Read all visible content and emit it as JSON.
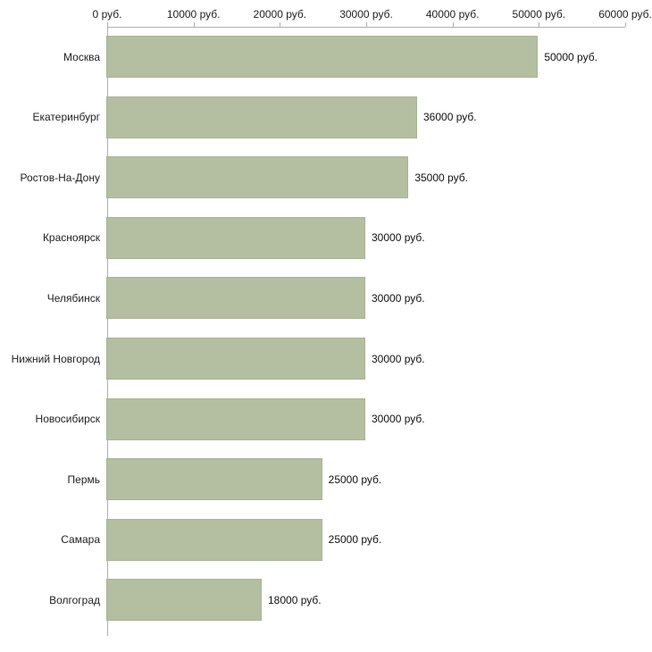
{
  "chart_data": {
    "type": "bar",
    "orientation": "horizontal",
    "categories": [
      "Москва",
      "Екатеринбург",
      "Ростов-На-Дону",
      "Красноярск",
      "Челябинск",
      "Нижний Новгород",
      "Новосибирск",
      "Пермь",
      "Самара",
      "Волгоград"
    ],
    "values": [
      50000,
      36000,
      35000,
      30000,
      30000,
      30000,
      30000,
      25000,
      25000,
      18000
    ],
    "value_labels": [
      "50000 руб.",
      "36000 руб.",
      "35000 руб.",
      "30000 руб.",
      "30000 руб.",
      "30000 руб.",
      "30000 руб.",
      "25000 руб.",
      "25000 руб.",
      "18000 руб."
    ],
    "x_ticks": [
      0,
      10000,
      20000,
      30000,
      40000,
      50000,
      60000
    ],
    "x_tick_labels": [
      "0 руб.",
      "10000 руб.",
      "20000 руб.",
      "30000 руб.",
      "40000 руб.",
      "50000 руб.",
      "60000 руб."
    ],
    "xlim": [
      0,
      60000
    ],
    "xlabel": "",
    "ylabel": "",
    "grid": false,
    "legend": false,
    "bar_color": "#b4bea1",
    "bar_border_color": "#a9b495",
    "axis_color": "#b0b0b0"
  }
}
